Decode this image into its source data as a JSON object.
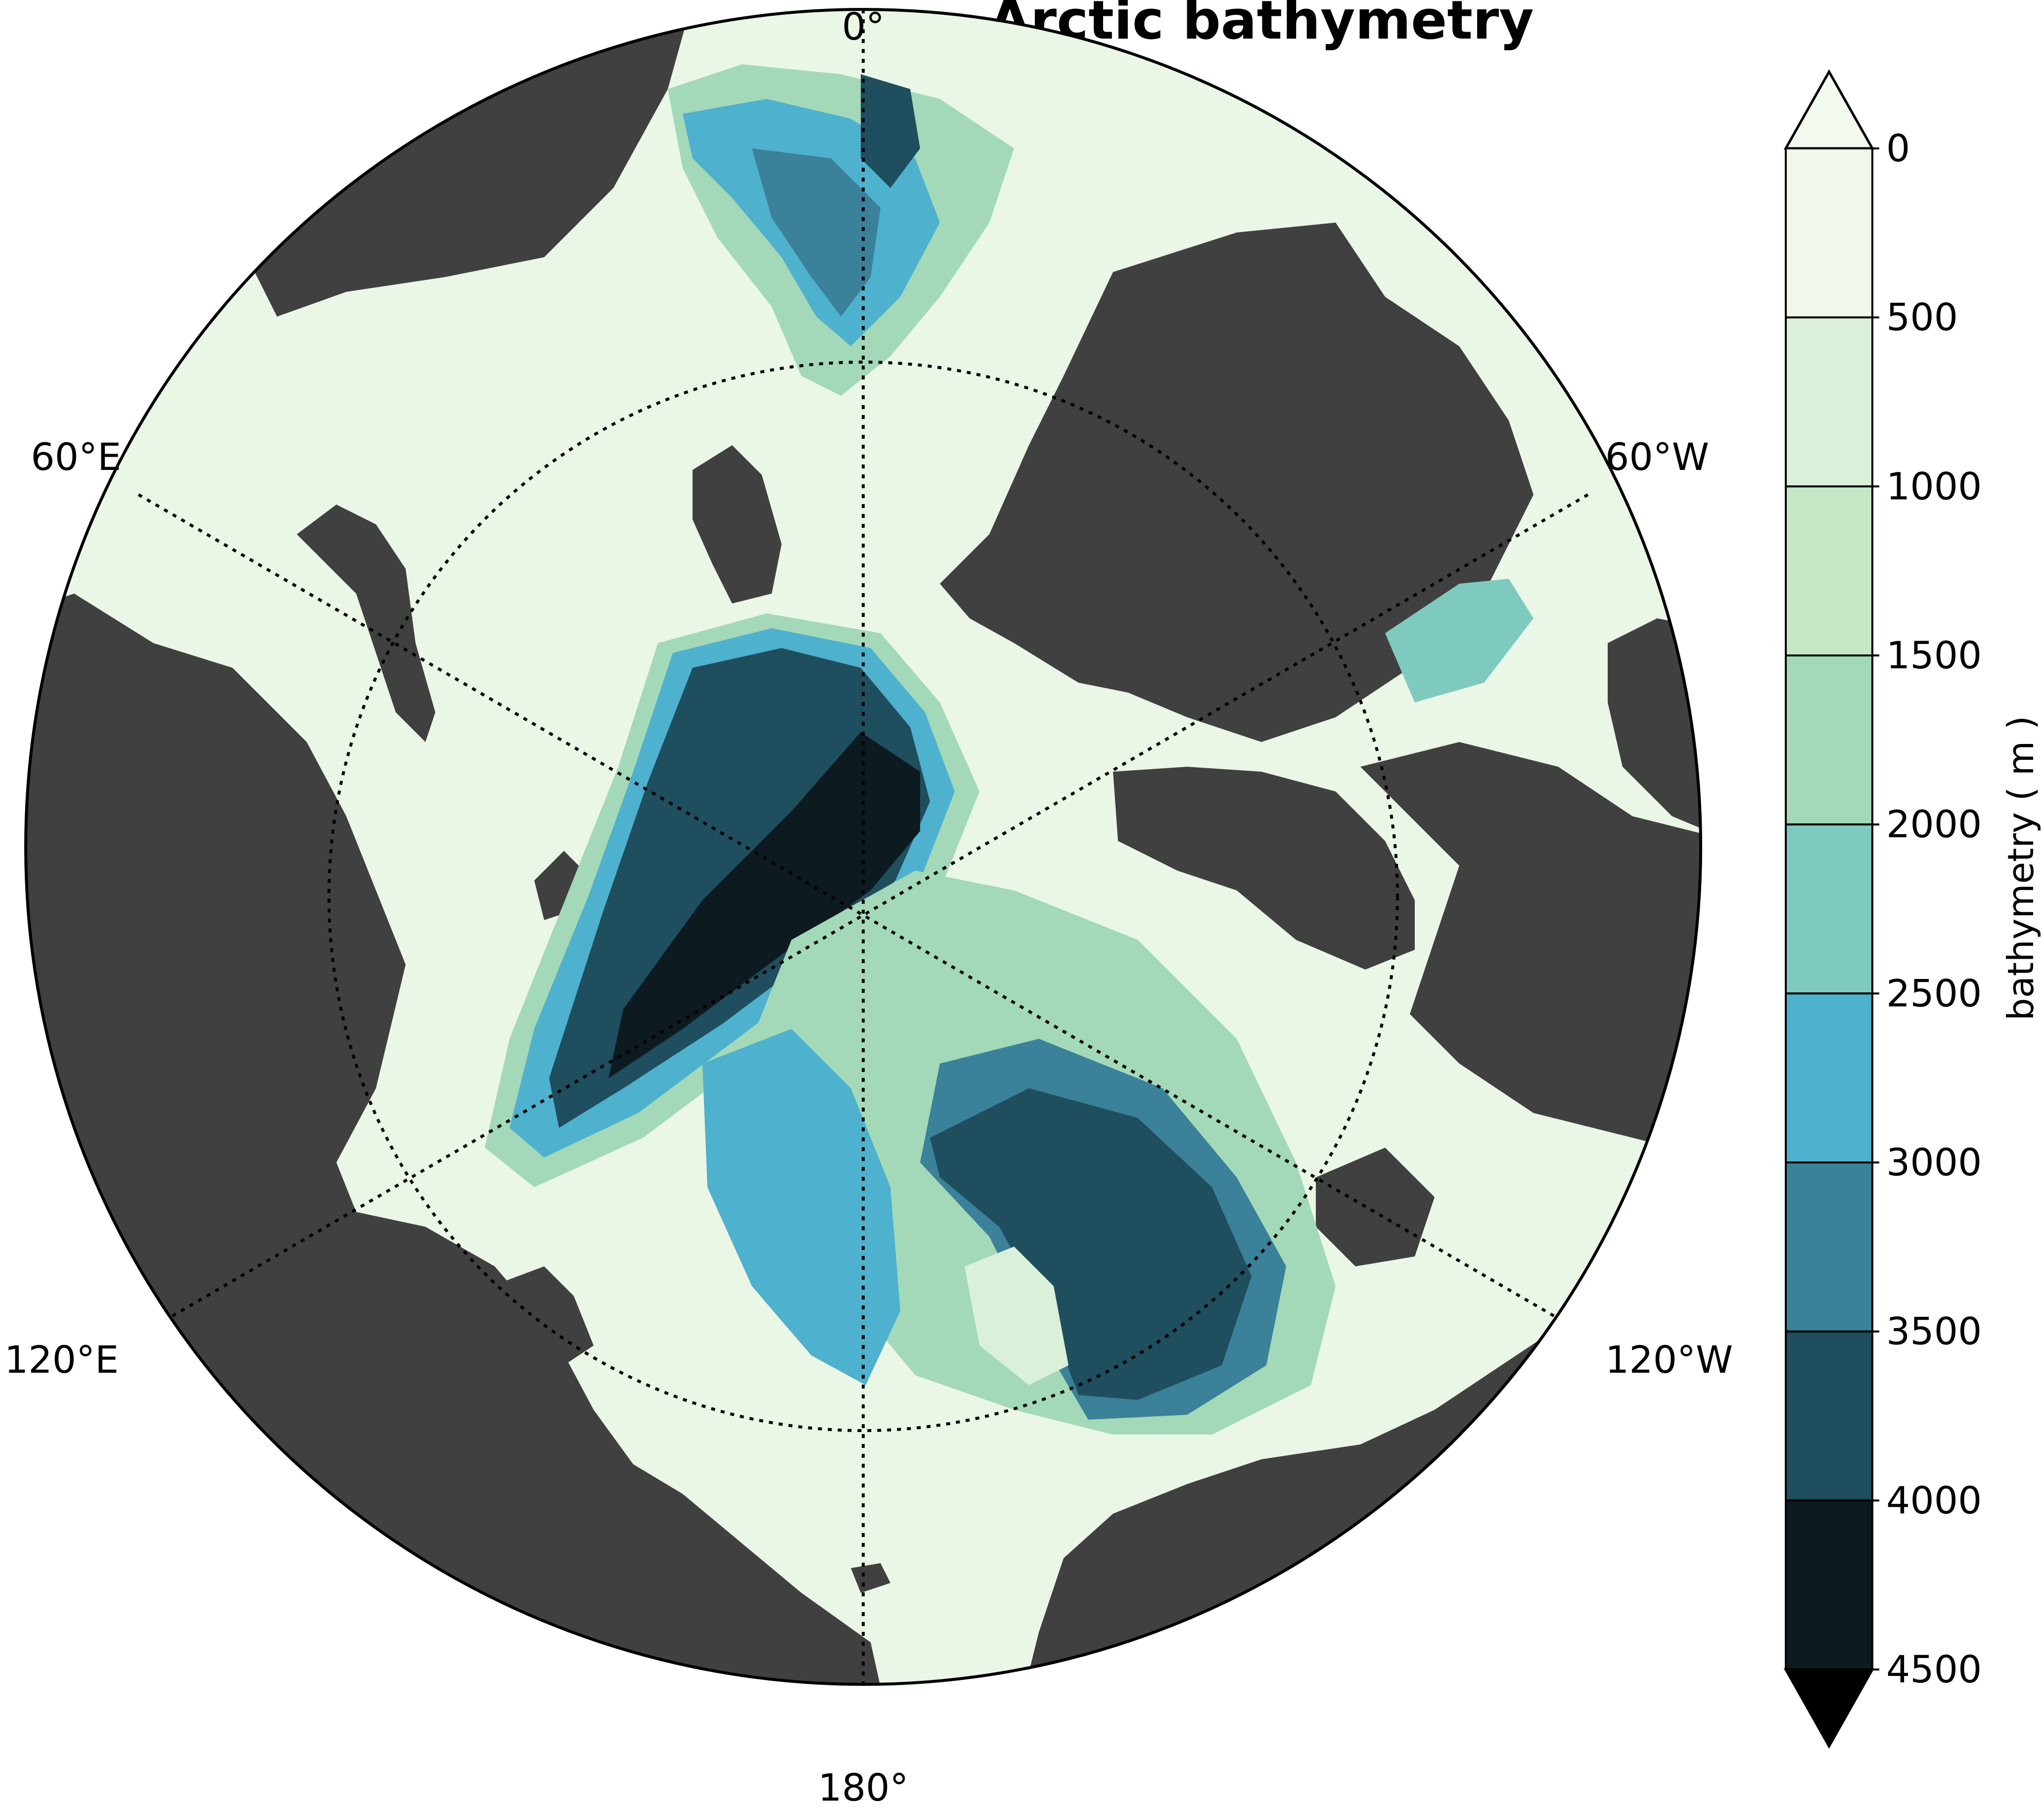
{
  "title": "Arctic bathymetry",
  "longitude_labels": {
    "north": "0°",
    "east_60": "60°E",
    "west_60": "60°W",
    "east_120": "120°E",
    "west_120": "120°W",
    "south": "180°"
  },
  "colorbar": {
    "label": "bathymetry ( m )",
    "ticks": [
      "0",
      "500",
      "1000",
      "1500",
      "2000",
      "2500",
      "3000",
      "3500",
      "4000",
      "4500"
    ],
    "extend": "both",
    "colors": [
      "#eff8eb",
      "#daf0d8",
      "#c5e8c7",
      "#a3d9b8",
      "#7fcabf",
      "#4eb1cd",
      "#3a8199",
      "#1f4e5e",
      "#0d1b20"
    ],
    "over_color": "#f2faf0",
    "under_color": "#000000"
  },
  "colors": {
    "land": "#404040",
    "shelf": "#eaf6e6",
    "gridline": "#000000"
  }
}
